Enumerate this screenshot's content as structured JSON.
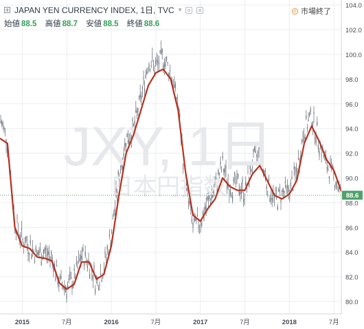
{
  "header": {
    "title": "JAPAN YEN CURRENCY INDEX, 1日, TVC",
    "ohlc": [
      {
        "label": "始値",
        "value": "88.5"
      },
      {
        "label": "高値",
        "value": "88.7"
      },
      {
        "label": "安値",
        "value": "88.5"
      },
      {
        "label": "終値",
        "value": "88.6"
      }
    ],
    "market_status": "市場終了"
  },
  "watermark": {
    "symbol": "JXY, 1日",
    "name": "日本円指数"
  },
  "colors": {
    "moving_average": "#b5311f",
    "candle": "#6f7780",
    "grid": "#eaedf0",
    "price_badge": "#4fa36a",
    "price_line": "#4fa36a",
    "axis_text": "#444a52",
    "status_icon": "#f08a36"
  },
  "chart_data": {
    "type": "line",
    "x_tick_labels": [
      "2015",
      "7月",
      "2016",
      "7月",
      "2017",
      "7月",
      "2018",
      "7月"
    ],
    "x_ticks": [
      "2015-01",
      "2015-07",
      "2016-01",
      "2016-07",
      "2017-01",
      "2017-07",
      "2018-01",
      "2018-07"
    ],
    "y_ticks": [
      80.0,
      82.0,
      84.0,
      86.0,
      88.0,
      90.0,
      92.0,
      94.0,
      96.0,
      98.0,
      100.0,
      102.0,
      104.0
    ],
    "ylim": [
      79.0,
      104.4
    ],
    "xlim": [
      "2014-10",
      "2018-08"
    ],
    "grid": true,
    "last_price": "88.6",
    "price_series": {
      "x": [
        "2014-10",
        "2014-11",
        "2014-12",
        "2015-01",
        "2015-02",
        "2015-03",
        "2015-04",
        "2015-05",
        "2015-06",
        "2015-07",
        "2015-08",
        "2015-09",
        "2015-10",
        "2015-11",
        "2015-12",
        "2016-01",
        "2016-02",
        "2016-03",
        "2016-04",
        "2016-05",
        "2016-06",
        "2016-07",
        "2016-08",
        "2016-09",
        "2016-10",
        "2016-11",
        "2016-12",
        "2017-01",
        "2017-02",
        "2017-03",
        "2017-04",
        "2017-05",
        "2017-06",
        "2017-07",
        "2017-08",
        "2017-09",
        "2017-10",
        "2017-11",
        "2017-12",
        "2018-01",
        "2018-02",
        "2018-03",
        "2018-04",
        "2018-05",
        "2018-06",
        "2018-07",
        "2018-08"
      ],
      "y": [
        94.8,
        93.0,
        86.5,
        85.0,
        84.5,
        83.8,
        84.0,
        83.5,
        81.5,
        81.2,
        81.8,
        83.8,
        83.2,
        81.5,
        82.8,
        85.5,
        90.0,
        93.2,
        94.0,
        96.5,
        99.5,
        99.0,
        99.8,
        98.5,
        96.0,
        89.5,
        86.0,
        86.5,
        88.0,
        89.2,
        91.0,
        89.2,
        89.5,
        88.8,
        91.2,
        92.0,
        89.5,
        88.2,
        88.7,
        89.0,
        90.5,
        94.0,
        95.0,
        93.0,
        91.0,
        90.2,
        88.6
      ]
    },
    "moving_average": {
      "x": [
        "2014-10",
        "2014-11",
        "2014-12",
        "2015-01",
        "2015-02",
        "2015-03",
        "2015-04",
        "2015-05",
        "2015-06",
        "2015-07",
        "2015-08",
        "2015-09",
        "2015-10",
        "2015-11",
        "2015-12",
        "2016-01",
        "2016-02",
        "2016-03",
        "2016-04",
        "2016-05",
        "2016-06",
        "2016-07",
        "2016-08",
        "2016-09",
        "2016-10",
        "2016-11",
        "2016-12",
        "2017-01",
        "2017-02",
        "2017-03",
        "2017-04",
        "2017-05",
        "2017-06",
        "2017-07",
        "2017-08",
        "2017-09",
        "2017-10",
        "2017-11",
        "2017-12",
        "2018-01",
        "2018-02",
        "2018-03",
        "2018-04",
        "2018-05",
        "2018-06",
        "2018-07",
        "2018-08"
      ],
      "y": [
        93.2,
        92.8,
        86.0,
        84.5,
        84.3,
        83.6,
        83.5,
        83.3,
        81.5,
        81.0,
        81.4,
        83.2,
        83.2,
        81.8,
        82.2,
        84.5,
        88.5,
        92.0,
        93.5,
        95.5,
        97.5,
        98.5,
        98.8,
        98.0,
        95.5,
        90.5,
        87.0,
        86.5,
        87.5,
        88.3,
        90.0,
        89.3,
        89.0,
        89.0,
        90.3,
        91.0,
        89.8,
        88.6,
        88.3,
        88.7,
        89.8,
        92.8,
        94.2,
        93.0,
        91.5,
        90.6,
        88.9
      ]
    }
  }
}
